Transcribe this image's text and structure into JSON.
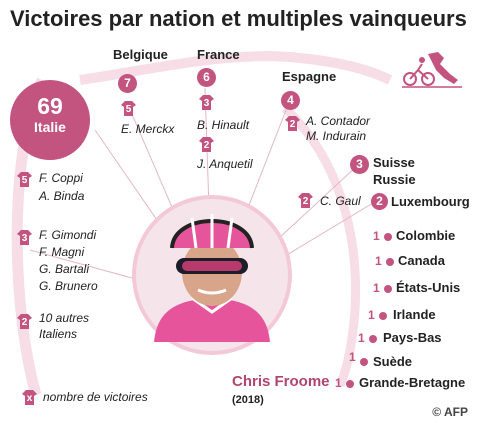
{
  "title": "Victoires par nation et multiples vainqueurs",
  "legend": {
    "jersey_symbol": "x",
    "label": "nombre de victoires"
  },
  "italy": {
    "count": "69",
    "name": "Italie"
  },
  "nations": {
    "belgique": {
      "name": "Belgique",
      "count": "7"
    },
    "france": {
      "name": "France",
      "count": "6"
    },
    "espagne": {
      "name": "Espagne",
      "count": "4"
    },
    "suisse": {
      "name": "Suisse",
      "count": "3"
    },
    "russie": {
      "name": "Russie"
    },
    "luxembourg": {
      "name": "Luxembourg",
      "count": "2"
    }
  },
  "singles": [
    {
      "count": "1",
      "name": "Colombie"
    },
    {
      "count": "1",
      "name": "Canada"
    },
    {
      "count": "1",
      "name": "États-Unis"
    },
    {
      "count": "1",
      "name": "Irlande"
    },
    {
      "count": "1",
      "name": "Pays-Bas"
    },
    {
      "count": "1",
      "name": "Suède"
    },
    {
      "count": "1",
      "name": "Grande-Bretagne"
    }
  ],
  "winners": {
    "merckx": {
      "wins": "5",
      "name": "E. Merckx"
    },
    "hinault": {
      "wins": "3",
      "name": "B. Hinault"
    },
    "anquetil": {
      "wins": "2",
      "name": "J. Anquetil"
    },
    "spain": {
      "wins": "2",
      "names": [
        "A. Contador",
        "M. Indurain"
      ]
    },
    "gaul": {
      "wins": "2",
      "name": "C. Gaul"
    },
    "italy_5": {
      "wins": "5",
      "names": [
        "F. Coppi",
        "A. Binda"
      ]
    },
    "italy_3": {
      "wins": "3",
      "names": [
        "F. Gimondi",
        "F. Magni",
        "G. Bartali",
        "G. Brunero"
      ]
    },
    "italy_2": {
      "wins": "2",
      "names": [
        "10 autres",
        "Italiens"
      ]
    }
  },
  "froome": {
    "name": "Chris Froome",
    "year": "(2018)"
  },
  "credit": "© AFP",
  "colors": {
    "accent": "#c2547f",
    "pale": "#f6dde6",
    "text": "#222222"
  }
}
